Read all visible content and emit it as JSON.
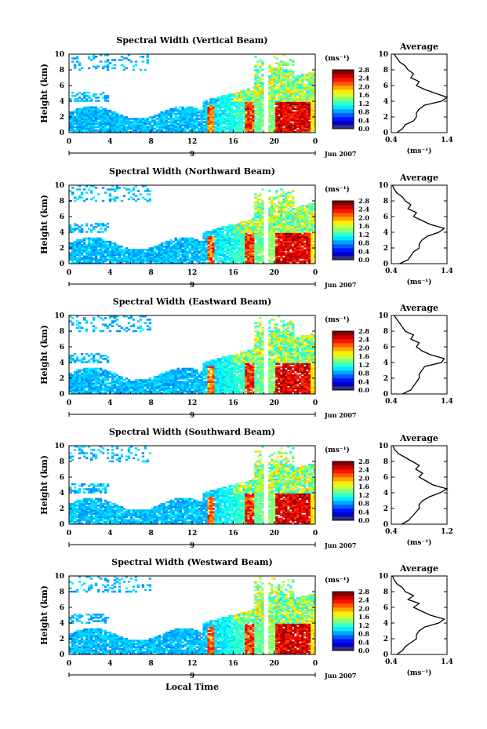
{
  "chart_data": [
    {
      "type": "heatmap",
      "title": "Spectral Width (Vertical Beam)",
      "ylabel": "Height (km)",
      "xlabel": "",
      "ylim": [
        0,
        10
      ],
      "xlim": [
        0,
        24
      ],
      "x_ticks": [
        "0",
        "4",
        "8",
        "12",
        "16",
        "20",
        "0"
      ],
      "y_ticks": [
        "0",
        "2",
        "4",
        "6",
        "8",
        "10"
      ],
      "date_label": "9",
      "date_suffix": "Jun 2007",
      "colorbar": {
        "label": "(ms⁻¹)",
        "ticks": [
          "0.0",
          "0.4",
          "0.8",
          "1.2",
          "1.6",
          "2.0",
          "2.4",
          "2.8"
        ],
        "range": [
          0,
          2.8
        ]
      },
      "profile": {
        "title": "Average",
        "xlabel": "(ms⁻¹)",
        "x_ticks": [
          "0.4",
          "1.4"
        ],
        "xlim": [
          0.4,
          1.4
        ],
        "y_ticks": [
          "0",
          "2",
          "4",
          "6",
          "8",
          "10"
        ],
        "heights": [
          0,
          0.5,
          1,
          1.5,
          2,
          2.5,
          3,
          3.5,
          4,
          4.5,
          5,
          5.5,
          6,
          6.5,
          7,
          7.5,
          8,
          8.5,
          9,
          9.5,
          10
        ],
        "values": [
          0.5,
          0.6,
          0.65,
          0.8,
          0.85,
          0.85,
          0.9,
          1.0,
          1.3,
          1.4,
          1.2,
          1.0,
          0.85,
          0.9,
          0.75,
          0.8,
          0.7,
          0.65,
          0.55,
          0.5,
          0.45
        ]
      }
    },
    {
      "type": "heatmap",
      "title": "Spectral Width (Northward Beam)",
      "ylabel": "Height (km)",
      "xlabel": "",
      "ylim": [
        0,
        10
      ],
      "xlim": [
        0,
        24
      ],
      "x_ticks": [
        "0",
        "4",
        "8",
        "12",
        "16",
        "20",
        "0"
      ],
      "y_ticks": [
        "0",
        "2",
        "4",
        "6",
        "8",
        "10"
      ],
      "date_label": "9",
      "date_suffix": "Jun 2007",
      "colorbar": {
        "label": "(ms⁻¹)",
        "ticks": [
          "0.0",
          "0.4",
          "0.8",
          "1.2",
          "1.6",
          "2.0",
          "2.4",
          "2.8"
        ],
        "range": [
          0,
          2.8
        ]
      },
      "profile": {
        "title": "Average",
        "xlabel": "(ms⁻¹)",
        "x_ticks": [
          "0.4",
          "1.4"
        ],
        "xlim": [
          0.4,
          1.4
        ],
        "y_ticks": [
          "0",
          "2",
          "4",
          "6",
          "8",
          "10"
        ],
        "heights": [
          0,
          0.5,
          1,
          1.5,
          2,
          2.5,
          3,
          3.5,
          4,
          4.5,
          5,
          5.5,
          6,
          6.5,
          7,
          7.5,
          8,
          8.5,
          9,
          9.5,
          10
        ],
        "values": [
          0.55,
          0.7,
          0.75,
          0.8,
          0.9,
          0.9,
          0.95,
          1.05,
          1.25,
          1.35,
          1.1,
          0.95,
          0.8,
          0.85,
          0.7,
          0.75,
          0.65,
          0.6,
          0.5,
          0.45,
          0.42
        ]
      }
    },
    {
      "type": "heatmap",
      "title": "Spectral Width (Eastward Beam)",
      "ylabel": "Height (km)",
      "xlabel": "",
      "ylim": [
        0,
        10
      ],
      "xlim": [
        0,
        24
      ],
      "x_ticks": [
        "0",
        "4",
        "8",
        "12",
        "16",
        "20",
        "0"
      ],
      "y_ticks": [
        "0",
        "2",
        "4",
        "6",
        "8",
        "10"
      ],
      "date_label": "9",
      "date_suffix": "Jun 2007",
      "colorbar": {
        "label": "(ms⁻¹)",
        "ticks": [
          "0.0",
          "0.4",
          "0.8",
          "1.2",
          "1.6",
          "2.0",
          "2.4",
          "2.8"
        ],
        "range": [
          0,
          2.8
        ]
      },
      "profile": {
        "title": "Average",
        "xlabel": "",
        "x_ticks": [
          "0.4",
          "1.4"
        ],
        "xlim": [
          0.4,
          1.4
        ],
        "y_ticks": [
          "0",
          "2",
          "4",
          "6",
          "8",
          "10"
        ],
        "heights": [
          0,
          0.5,
          1,
          1.5,
          2,
          2.5,
          3,
          3.5,
          4,
          4.5,
          5,
          5.5,
          6,
          6.5,
          7,
          7.5,
          8,
          8.5,
          9,
          9.5,
          10
        ],
        "values": [
          0.6,
          0.75,
          0.8,
          0.85,
          0.9,
          0.9,
          0.95,
          1.0,
          1.3,
          1.35,
          1.1,
          0.95,
          0.85,
          0.9,
          0.75,
          0.8,
          0.65,
          0.6,
          0.55,
          0.5,
          0.45
        ]
      }
    },
    {
      "type": "heatmap",
      "title": "Spectral Width (Southward Beam)",
      "ylabel": "Height (km)",
      "xlabel": "",
      "ylim": [
        0,
        10
      ],
      "xlim": [
        0,
        24
      ],
      "x_ticks": [
        "0",
        "4",
        "8",
        "12",
        "16",
        "20",
        "0"
      ],
      "y_ticks": [
        "0",
        "2",
        "4",
        "6",
        "8",
        "10"
      ],
      "date_label": "9",
      "date_suffix": "Jun 2007",
      "colorbar": {
        "label": "(ms⁻¹)",
        "ticks": [
          "0.0",
          "0.4",
          "0.8",
          "1.2",
          "1.6",
          "2.0",
          "2.4",
          "2.8"
        ],
        "range": [
          0,
          2.8
        ]
      },
      "profile": {
        "title": "Average",
        "xlabel": "(ms⁻¹)",
        "x_ticks": [
          "0.4",
          "1.2"
        ],
        "xlim": [
          0.4,
          1.2
        ],
        "y_ticks": [
          "0",
          "2",
          "4",
          "6",
          "8",
          "10"
        ],
        "heights": [
          0,
          0.5,
          1,
          1.5,
          2,
          2.5,
          3,
          3.5,
          4,
          4.5,
          5,
          5.5,
          6,
          6.5,
          7,
          7.5,
          8,
          8.5,
          9,
          9.5,
          10
        ],
        "values": [
          0.55,
          0.65,
          0.7,
          0.75,
          0.8,
          0.8,
          0.85,
          0.95,
          1.1,
          1.2,
          1.0,
          0.9,
          0.8,
          0.85,
          0.75,
          0.8,
          0.7,
          0.6,
          0.5,
          0.45,
          0.42
        ]
      }
    },
    {
      "type": "heatmap",
      "title": "Spectral Width (Westward Beam)",
      "ylabel": "Height (km)",
      "xlabel": "Local Time",
      "ylim": [
        0,
        10
      ],
      "xlim": [
        0,
        24
      ],
      "x_ticks": [
        "0",
        "4",
        "8",
        "12",
        "16",
        "20",
        "0"
      ],
      "y_ticks": [
        "0",
        "2",
        "4",
        "6",
        "8",
        "10"
      ],
      "date_label": "9",
      "date_suffix": "Jun 2007",
      "colorbar": {
        "label": "(ms⁻¹)",
        "ticks": [
          "0.0",
          "0.4",
          "0.8",
          "1.2",
          "1.6",
          "2.0",
          "2.4",
          "2.8"
        ],
        "range": [
          0,
          2.8
        ]
      },
      "profile": {
        "title": "Average",
        "xlabel": "(ms⁻¹)",
        "x_ticks": [
          "0.4",
          "1.4"
        ],
        "xlim": [
          0.4,
          1.4
        ],
        "y_ticks": [
          "0",
          "2",
          "4",
          "6",
          "8",
          "10"
        ],
        "heights": [
          0,
          0.5,
          1,
          1.5,
          2,
          2.5,
          3,
          3.5,
          4,
          4.5,
          5,
          5.5,
          6,
          6.5,
          7,
          7.5,
          8,
          8.5,
          9,
          9.5,
          10
        ],
        "values": [
          0.5,
          0.6,
          0.65,
          0.75,
          0.85,
          0.85,
          0.9,
          1.0,
          1.25,
          1.35,
          1.1,
          0.95,
          0.8,
          0.9,
          0.7,
          0.8,
          0.65,
          0.6,
          0.5,
          0.45,
          0.42
        ]
      }
    }
  ]
}
